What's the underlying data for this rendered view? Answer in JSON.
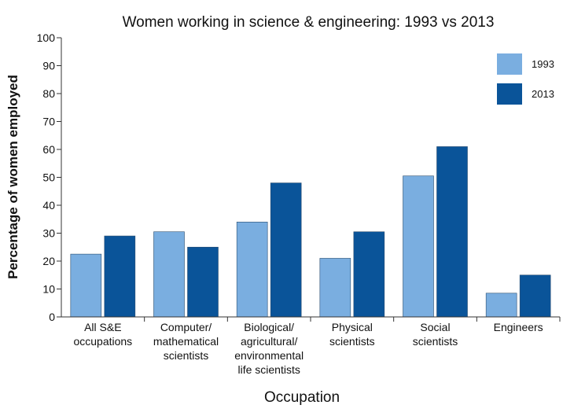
{
  "chart_data": {
    "type": "bar",
    "title": "Women working in science & engineering: 1993 vs 2013",
    "xlabel": "Occupation",
    "ylabel": "Percentage of women employed",
    "ylim": [
      0,
      100
    ],
    "yticks": [
      0,
      10,
      20,
      30,
      40,
      50,
      60,
      70,
      80,
      90,
      100
    ],
    "grid": false,
    "legend_position": "top-right",
    "categories": [
      [
        "All S&E",
        "occupations"
      ],
      [
        "Computer/",
        "mathematical",
        "scientists"
      ],
      [
        "Biological/",
        "agricultural/",
        "environmental",
        "life scientists"
      ],
      [
        "Physical",
        "scientists"
      ],
      [
        "Social",
        "scientists"
      ],
      [
        "Engineers"
      ]
    ],
    "series": [
      {
        "name": "1993",
        "color": "#7aaee0",
        "values": [
          22.5,
          30.5,
          34,
          21,
          50.5,
          8.5
        ]
      },
      {
        "name": "2013",
        "color": "#0a5499",
        "values": [
          29,
          25,
          48,
          30.5,
          61,
          15
        ]
      }
    ]
  }
}
